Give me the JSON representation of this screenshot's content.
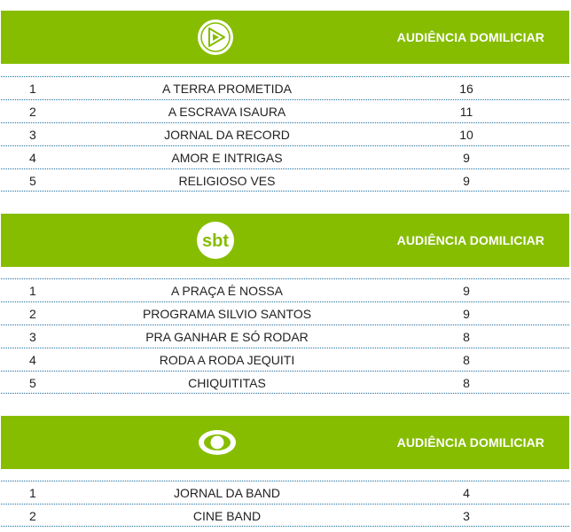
{
  "sections": [
    {
      "logo": "record-logo-icon",
      "header": "AUDIÊNCIA DOMILICIAR",
      "rows": [
        {
          "rank": "1",
          "program": "A TERRA PROMETIDA",
          "audience": "16"
        },
        {
          "rank": "2",
          "program": "A ESCRAVA ISAURA",
          "audience": "11"
        },
        {
          "rank": "3",
          "program": "JORNAL DA RECORD",
          "audience": "10"
        },
        {
          "rank": "4",
          "program": "AMOR E INTRIGAS",
          "audience": "9"
        },
        {
          "rank": "5",
          "program": "RELIGIOSO VES",
          "audience": "9"
        }
      ]
    },
    {
      "logo": "sbt-logo-icon",
      "logo_text": "sbt",
      "header": "AUDIÊNCIA DOMILICIAR",
      "rows": [
        {
          "rank": "1",
          "program": "A PRAÇA É NOSSA",
          "audience": "9"
        },
        {
          "rank": "2",
          "program": "PROGRAMA SILVIO SANTOS",
          "audience": "9"
        },
        {
          "rank": "3",
          "program": "PRA GANHAR E SÓ RODAR",
          "audience": "8"
        },
        {
          "rank": "4",
          "program": "RODA A RODA JEQUITI",
          "audience": "8"
        },
        {
          "rank": "5",
          "program": "CHIQUITITAS",
          "audience": "8"
        }
      ]
    },
    {
      "logo": "band-logo-icon",
      "header": "AUDIÊNCIA DOMILICIAR",
      "rows": [
        {
          "rank": "1",
          "program": "JORNAL DA BAND",
          "audience": "4"
        },
        {
          "rank": "2",
          "program": "CINE BAND",
          "audience": "3"
        }
      ]
    }
  ],
  "colors": {
    "header_bg": "#86bd00",
    "header_text": "#ffffff",
    "divider": "#1c6fa3"
  }
}
